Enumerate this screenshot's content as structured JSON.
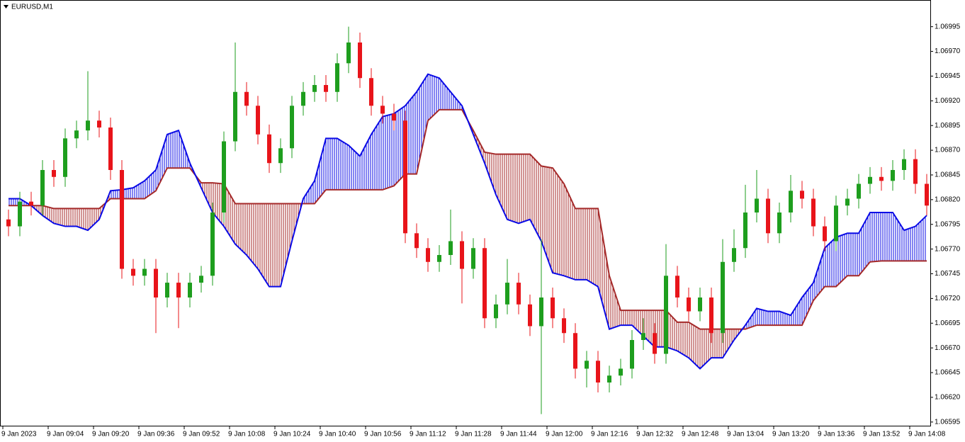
{
  "chart_data": {
    "type": "candlestick",
    "title": "EURUSD,M1",
    "categories": [
      "9 Jan 2023",
      null,
      null,
      null,
      "9 Jan 09:04",
      null,
      null,
      null,
      "9 Jan 09:20",
      null,
      null,
      null,
      "9 Jan 09:36",
      null,
      null,
      null,
      "9 Jan 09:52",
      null,
      null,
      null,
      "9 Jan 10:08",
      null,
      null,
      null,
      "9 Jan 10:24",
      null,
      null,
      null,
      "9 Jan 10:40",
      null,
      null,
      null,
      "9 Jan 10:56",
      null,
      null,
      null,
      "9 Jan 11:12",
      null,
      null,
      null,
      "9 Jan 11:28",
      null,
      null,
      null,
      "9 Jan 11:44",
      null,
      null,
      null,
      "9 Jan 12:00",
      null,
      null,
      null,
      "9 Jan 12:16",
      null,
      null,
      null,
      "9 Jan 12:32",
      null,
      null,
      null,
      "9 Jan 12:48",
      null,
      null,
      null,
      "9 Jan 13:04",
      null,
      null,
      null,
      "9 Jan 13:20",
      null,
      null,
      null,
      "9 Jan 13:36",
      null,
      null,
      null,
      "9 Jan 13:52",
      null,
      null,
      null,
      "9 Jan 14:08",
      null
    ],
    "open": [
      1.068,
      1.06793,
      1.06818,
      1.06814,
      1.0685,
      1.06843,
      1.06882,
      1.0689,
      1.069,
      1.06893,
      1.0685,
      1.0675,
      1.06743,
      1.0675,
      1.06721,
      1.06736,
      1.06721,
      1.06736,
      1.06743,
      1.06807,
      1.06879,
      1.06929,
      1.06915,
      1.06886,
      1.06857,
      1.06872,
      1.06915,
      1.06929,
      1.06936,
      1.06929,
      1.06958,
      1.06979,
      1.06943,
      1.06915,
      1.06907,
      1.069,
      1.06786,
      1.06771,
      1.06757,
      1.06764,
      1.06778,
      1.0675,
      1.06771,
      1.067,
      1.06714,
      1.06736,
      1.06714,
      1.06692,
      1.06721,
      1.067,
      1.06685,
      1.06649,
      1.06657,
      1.06635,
      1.06642,
      1.06649,
      1.06678,
      1.06685,
      1.06664,
      1.06743,
      1.06721,
      1.06707,
      1.06721,
      1.06685,
      1.06757,
      1.06771,
      1.06807,
      1.06821,
      1.06786,
      1.06807,
      1.06829,
      1.06821,
      1.06793,
      1.06778,
      1.06814,
      1.06821,
      1.06836,
      1.06843,
      1.06839,
      1.0685,
      1.06861,
      1.06836
    ],
    "high": [
      1.0681,
      1.06828,
      1.06828,
      1.0686,
      1.0686,
      1.06892,
      1.069,
      1.0695,
      1.0691,
      1.06903,
      1.0686,
      1.0676,
      1.0676,
      1.0676,
      1.06746,
      1.06746,
      1.06746,
      1.06753,
      1.06817,
      1.06889,
      1.06979,
      1.06939,
      1.06925,
      1.06896,
      1.06882,
      1.06925,
      1.06939,
      1.06946,
      1.06946,
      1.06968,
      1.06995,
      1.06989,
      1.06953,
      1.06925,
      1.06917,
      1.0691,
      1.06796,
      1.06781,
      1.06774,
      1.0681,
      1.06788,
      1.06781,
      1.06781,
      1.06724,
      1.0676,
      1.06746,
      1.06724,
      1.0678,
      1.06731,
      1.0671,
      1.06695,
      1.06667,
      1.06667,
      1.06652,
      1.06659,
      1.06688,
      1.067,
      1.06695,
      1.06775,
      1.06753,
      1.06731,
      1.06731,
      1.06731,
      1.0678,
      1.0679,
      1.06835,
      1.0685,
      1.06831,
      1.06817,
      1.06845,
      1.06839,
      1.06831,
      1.06803,
      1.06824,
      1.06831,
      1.06846,
      1.06853,
      1.06853,
      1.0686,
      1.06871,
      1.06871,
      1.06846
    ],
    "low": [
      1.06783,
      1.06783,
      1.06804,
      1.06804,
      1.06833,
      1.06833,
      1.06872,
      1.0688,
      1.06883,
      1.0684,
      1.0674,
      1.06733,
      1.06733,
      1.06685,
      1.06711,
      1.0669,
      1.06711,
      1.06726,
      1.06733,
      1.06797,
      1.06869,
      1.06905,
      1.06876,
      1.06847,
      1.06847,
      1.06862,
      1.06905,
      1.06919,
      1.06919,
      1.06919,
      1.06948,
      1.06933,
      1.06905,
      1.06897,
      1.0689,
      1.06776,
      1.06761,
      1.06747,
      1.06747,
      1.06754,
      1.06715,
      1.0674,
      1.0669,
      1.0669,
      1.06704,
      1.06704,
      1.06682,
      1.06603,
      1.0669,
      1.06675,
      1.06639,
      1.0663,
      1.06625,
      1.06625,
      1.06632,
      1.06639,
      1.06668,
      1.06654,
      1.06654,
      1.06711,
      1.06697,
      1.06697,
      1.06675,
      1.06675,
      1.06747,
      1.06761,
      1.06797,
      1.06776,
      1.06776,
      1.06797,
      1.06811,
      1.06783,
      1.06768,
      1.06768,
      1.06804,
      1.06811,
      1.06826,
      1.06829,
      1.06829,
      1.0684,
      1.06826,
      1.06804
    ],
    "close": [
      1.06793,
      1.06818,
      1.06814,
      1.0685,
      1.06843,
      1.06882,
      1.0689,
      1.069,
      1.06893,
      1.0685,
      1.0675,
      1.06743,
      1.0675,
      1.06721,
      1.06736,
      1.06721,
      1.06736,
      1.06743,
      1.06807,
      1.06879,
      1.06929,
      1.06915,
      1.06886,
      1.06857,
      1.06872,
      1.06915,
      1.06929,
      1.06936,
      1.06929,
      1.06958,
      1.06979,
      1.06943,
      1.06915,
      1.06907,
      1.069,
      1.06786,
      1.06771,
      1.06757,
      1.06764,
      1.06778,
      1.0675,
      1.06771,
      1.067,
      1.06714,
      1.06736,
      1.06714,
      1.06692,
      1.06721,
      1.067,
      1.06685,
      1.06649,
      1.06657,
      1.06635,
      1.06642,
      1.06649,
      1.06678,
      1.06685,
      1.06664,
      1.06743,
      1.06721,
      1.06707,
      1.06721,
      1.06685,
      1.06757,
      1.06771,
      1.06807,
      1.06821,
      1.06786,
      1.06807,
      1.06829,
      1.06821,
      1.06793,
      1.06778,
      1.06814,
      1.06821,
      1.06836,
      1.06843,
      1.06839,
      1.0685,
      1.06861,
      1.06836,
      1.06814
    ],
    "up_color": "#1e9e1e",
    "down_color": "#e8141a",
    "cloud": {
      "span_a": [
        1.06821,
        1.06821,
        1.06814,
        1.06804,
        1.06796,
        1.06793,
        1.06793,
        1.06789,
        1.068,
        1.06829,
        1.0683,
        1.06832,
        1.06839,
        1.0685,
        1.06886,
        1.0689,
        1.06857,
        1.06832,
        1.06807,
        1.06793,
        1.06775,
        1.06764,
        1.0675,
        1.06732,
        1.06732,
        1.06778,
        1.06821,
        1.06839,
        1.06882,
        1.06882,
        1.06875,
        1.06864,
        1.06886,
        1.06904,
        1.06907,
        1.06915,
        1.06929,
        1.06947,
        1.06943,
        1.06929,
        1.06915,
        1.06886,
        1.06857,
        1.06825,
        1.068,
        1.06796,
        1.068,
        1.06778,
        1.06746,
        1.06743,
        1.06739,
        1.06739,
        1.06732,
        1.06689,
        1.06693,
        1.06693,
        1.06682,
        1.06671,
        1.06671,
        1.06667,
        1.0666,
        1.06649,
        1.0666,
        1.0666,
        1.06678,
        1.06693,
        1.0671,
        1.06707,
        1.06707,
        1.06703,
        1.06721,
        1.06736,
        1.06771,
        1.06782,
        1.06786,
        1.06786,
        1.06807,
        1.06807,
        1.06807,
        1.06789,
        1.06793,
        1.06804
      ],
      "span_b": [
        1.06814,
        1.06814,
        1.06814,
        1.06814,
        1.06811,
        1.06811,
        1.06811,
        1.06811,
        1.06811,
        1.06821,
        1.06821,
        1.06821,
        1.06821,
        1.06829,
        1.06852,
        1.06852,
        1.06852,
        1.06837,
        1.06837,
        1.06836,
        1.06816,
        1.06816,
        1.06816,
        1.06816,
        1.06816,
        1.06816,
        1.06816,
        1.06816,
        1.0683,
        1.0683,
        1.0683,
        1.0683,
        1.0683,
        1.0683,
        1.06834,
        1.06846,
        1.06846,
        1.069,
        1.06911,
        1.06911,
        1.06911,
        1.0689,
        1.06868,
        1.06866,
        1.06866,
        1.06866,
        1.06866,
        1.06854,
        1.06852,
        1.06836,
        1.06811,
        1.06811,
        1.06811,
        1.06743,
        1.06708,
        1.06708,
        1.06708,
        1.06708,
        1.06708,
        1.06696,
        1.06696,
        1.06689,
        1.06689,
        1.06689,
        1.06689,
        1.06689,
        1.06693,
        1.06693,
        1.06693,
        1.06693,
        1.06693,
        1.06718,
        1.06732,
        1.06732,
        1.06743,
        1.06743,
        1.06757,
        1.06758,
        1.06758,
        1.06758,
        1.06758,
        1.06758
      ],
      "span_a_color": "#0a0ae6",
      "span_b_color": "#a52a2a"
    },
    "ylim": [
      1.06592,
      1.07022
    ],
    "yticks": [
      {
        "value": 1.06595,
        "label": "1.06595"
      },
      {
        "value": 1.0662,
        "label": "1.06620"
      },
      1.06645,
      {
        "value": 1.0667,
        "label": "1.06670"
      },
      1.06695,
      {
        "value": 1.0672,
        "label": "1.06720"
      },
      1.06745,
      {
        "value": 1.0677,
        "label": "1.06770"
      },
      1.06795,
      {
        "value": 1.0682,
        "label": "1.06820"
      },
      1.06845,
      {
        "value": 1.0687,
        "label": "1.06870"
      },
      1.06895,
      {
        "value": 1.0692,
        "label": "1.06920"
      },
      1.06945,
      {
        "value": 1.0697,
        "label": "1.06970"
      },
      1.06995
    ]
  }
}
